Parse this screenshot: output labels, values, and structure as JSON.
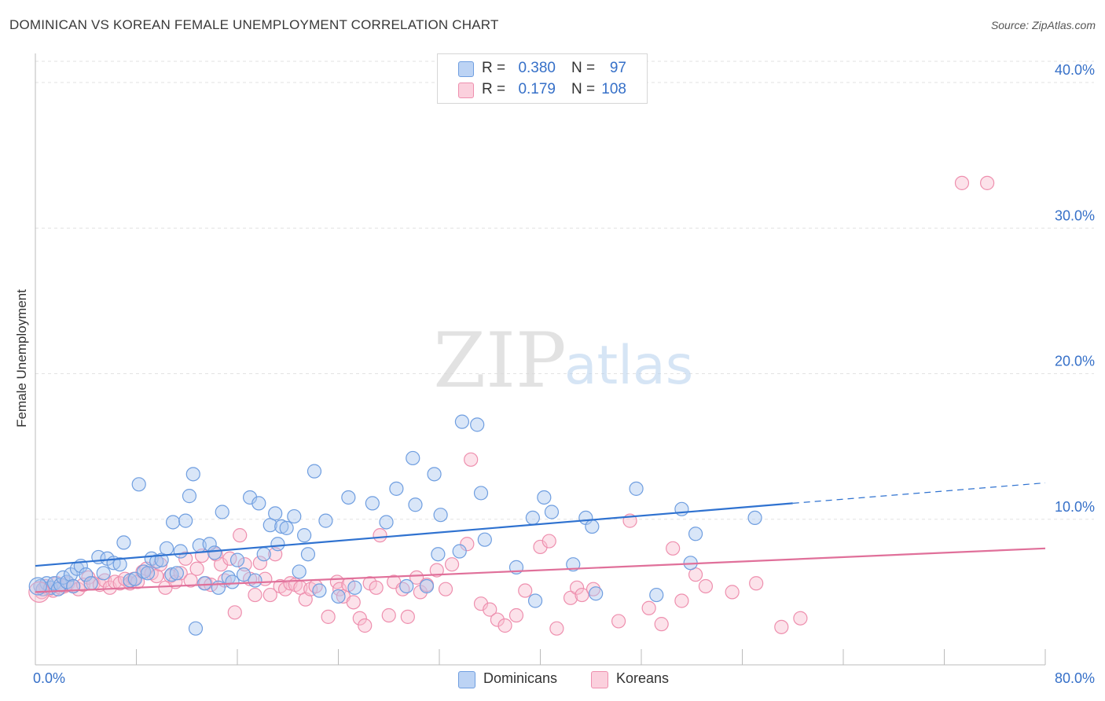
{
  "header": {
    "title": "DOMINICAN VS KOREAN FEMALE UNEMPLOYMENT CORRELATION CHART",
    "source": "Source: ZipAtlas.com"
  },
  "watermark": {
    "zip": "ZIP",
    "atlas": "atlas"
  },
  "legend_top": {
    "rows": [
      {
        "r_label": "R =",
        "r_value": "0.380",
        "n_label": "N =",
        "n_value": "97"
      },
      {
        "r_label": "R =",
        "r_value": "0.179",
        "n_label": "N =",
        "n_value": "108"
      }
    ]
  },
  "legend_bottom": {
    "items": [
      {
        "label": "Dominicans"
      },
      {
        "label": "Koreans"
      }
    ]
  },
  "colors": {
    "dominican_fill": "#aac8f0",
    "dominican_stroke": "#6f9ee0",
    "dominican_line": "#2f72d0",
    "korean_fill": "#f8bfd0",
    "korean_stroke": "#ee8fae",
    "korean_line": "#e0709a",
    "tick_label": "#3670c8",
    "grid": "#e2e2e2"
  },
  "chart_data": {
    "type": "scatter",
    "title": "DOMINICAN VS KOREAN FEMALE UNEMPLOYMENT CORRELATION CHART",
    "xlabel": "",
    "ylabel": "Female Unemployment",
    "xlim": [
      0,
      80
    ],
    "ylim": [
      0,
      42
    ],
    "x_tick_labels": [
      "0.0%",
      "80.0%"
    ],
    "y_ticks": [
      10,
      20,
      30,
      40
    ],
    "y_tick_labels": [
      "10.0%",
      "20.0%",
      "30.0%",
      "40.0%"
    ],
    "grid": true,
    "legend_position": "top-center",
    "series": [
      {
        "name": "Dominicans",
        "r": 0.38,
        "n": 97,
        "trend": {
          "x0": 0,
          "y0": 6.8,
          "x1": 60,
          "y1": 11.1,
          "dash_to_x": 80,
          "dash_to_y": 12.5
        },
        "points": [
          [
            0.4,
            5.4
          ],
          [
            0.6,
            5.2
          ],
          [
            0.9,
            5.6
          ],
          [
            1.2,
            5.3
          ],
          [
            1.5,
            5.6
          ],
          [
            1.8,
            5.2
          ],
          [
            2.0,
            5.5
          ],
          [
            2.2,
            6.0
          ],
          [
            2.5,
            5.7
          ],
          [
            2.8,
            6.2
          ],
          [
            3.0,
            5.4
          ],
          [
            3.3,
            6.6
          ],
          [
            3.6,
            6.8
          ],
          [
            4.0,
            6.2
          ],
          [
            4.4,
            5.6
          ],
          [
            5.0,
            7.4
          ],
          [
            5.4,
            6.3
          ],
          [
            5.7,
            7.3
          ],
          [
            6.2,
            7.0
          ],
          [
            6.7,
            6.9
          ],
          [
            7.0,
            8.4
          ],
          [
            7.5,
            5.8
          ],
          [
            7.9,
            5.9
          ],
          [
            8.2,
            12.4
          ],
          [
            8.6,
            6.4
          ],
          [
            8.9,
            6.3
          ],
          [
            9.2,
            7.3
          ],
          [
            9.6,
            7.1
          ],
          [
            10.0,
            7.2
          ],
          [
            10.4,
            8.0
          ],
          [
            10.8,
            6.2
          ],
          [
            10.9,
            9.8
          ],
          [
            11.2,
            6.3
          ],
          [
            11.5,
            7.8
          ],
          [
            11.9,
            9.9
          ],
          [
            12.2,
            11.6
          ],
          [
            12.5,
            13.1
          ],
          [
            12.7,
            2.5
          ],
          [
            13.0,
            8.2
          ],
          [
            13.4,
            5.6
          ],
          [
            13.8,
            8.3
          ],
          [
            14.2,
            7.7
          ],
          [
            14.5,
            5.3
          ],
          [
            14.8,
            10.5
          ],
          [
            15.3,
            6.0
          ],
          [
            15.6,
            5.7
          ],
          [
            16.0,
            7.2
          ],
          [
            16.5,
            6.2
          ],
          [
            17.0,
            11.5
          ],
          [
            17.4,
            5.8
          ],
          [
            17.7,
            11.1
          ],
          [
            18.1,
            7.6
          ],
          [
            18.6,
            9.6
          ],
          [
            19.0,
            10.4
          ],
          [
            19.2,
            8.3
          ],
          [
            19.5,
            9.5
          ],
          [
            19.9,
            9.4
          ],
          [
            20.5,
            10.2
          ],
          [
            20.9,
            6.4
          ],
          [
            21.3,
            8.9
          ],
          [
            21.6,
            7.6
          ],
          [
            22.1,
            13.3
          ],
          [
            22.5,
            5.1
          ],
          [
            23.0,
            9.9
          ],
          [
            24.0,
            4.7
          ],
          [
            24.8,
            11.5
          ],
          [
            25.3,
            5.3
          ],
          [
            26.7,
            11.1
          ],
          [
            27.8,
            9.8
          ],
          [
            28.6,
            12.1
          ],
          [
            29.4,
            5.4
          ],
          [
            29.9,
            14.2
          ],
          [
            30.1,
            11.0
          ],
          [
            31.0,
            5.4
          ],
          [
            31.6,
            13.1
          ],
          [
            31.9,
            7.6
          ],
          [
            32.1,
            10.3
          ],
          [
            33.6,
            7.8
          ],
          [
            33.8,
            16.7
          ],
          [
            35.0,
            16.5
          ],
          [
            35.3,
            11.8
          ],
          [
            35.6,
            8.6
          ],
          [
            38.1,
            6.7
          ],
          [
            39.4,
            10.1
          ],
          [
            39.6,
            4.4
          ],
          [
            40.3,
            11.5
          ],
          [
            40.9,
            10.5
          ],
          [
            42.6,
            6.9
          ],
          [
            43.6,
            10.1
          ],
          [
            44.1,
            9.5
          ],
          [
            44.4,
            4.9
          ],
          [
            47.6,
            12.1
          ],
          [
            49.2,
            4.8
          ],
          [
            51.2,
            10.7
          ],
          [
            51.9,
            7.0
          ],
          [
            52.3,
            9.0
          ],
          [
            57.0,
            10.1
          ]
        ]
      },
      {
        "name": "Koreans",
        "r": 0.179,
        "n": 108,
        "trend": {
          "x0": 0,
          "y0": 5.0,
          "x1": 80,
          "y1": 8.0
        },
        "points": [
          [
            0.5,
            5.0
          ],
          [
            0.8,
            5.4
          ],
          [
            1.1,
            5.2
          ],
          [
            1.4,
            5.1
          ],
          [
            1.7,
            5.6
          ],
          [
            2.0,
            5.3
          ],
          [
            2.3,
            5.4
          ],
          [
            2.6,
            5.6
          ],
          [
            3.0,
            5.4
          ],
          [
            3.4,
            5.2
          ],
          [
            3.8,
            5.5
          ],
          [
            4.2,
            6.0
          ],
          [
            4.6,
            5.6
          ],
          [
            5.1,
            5.5
          ],
          [
            5.5,
            5.8
          ],
          [
            5.9,
            5.3
          ],
          [
            6.3,
            5.7
          ],
          [
            6.7,
            5.6
          ],
          [
            7.1,
            5.9
          ],
          [
            7.5,
            5.6
          ],
          [
            7.8,
            5.9
          ],
          [
            8.1,
            5.7
          ],
          [
            8.5,
            6.4
          ],
          [
            8.8,
            6.6
          ],
          [
            9.2,
            6.3
          ],
          [
            9.6,
            6.1
          ],
          [
            9.9,
            6.9
          ],
          [
            10.3,
            5.3
          ],
          [
            10.7,
            6.1
          ],
          [
            11.1,
            5.7
          ],
          [
            11.5,
            6.3
          ],
          [
            11.9,
            7.3
          ],
          [
            12.3,
            5.8
          ],
          [
            12.8,
            6.6
          ],
          [
            13.2,
            7.5
          ],
          [
            13.5,
            5.6
          ],
          [
            13.9,
            5.5
          ],
          [
            14.3,
            7.6
          ],
          [
            14.7,
            6.9
          ],
          [
            15.0,
            5.8
          ],
          [
            15.4,
            7.3
          ],
          [
            15.8,
            3.6
          ],
          [
            16.2,
            8.9
          ],
          [
            16.6,
            6.9
          ],
          [
            17.0,
            5.9
          ],
          [
            17.4,
            4.8
          ],
          [
            17.8,
            7.0
          ],
          [
            18.2,
            5.9
          ],
          [
            18.6,
            4.8
          ],
          [
            19.0,
            7.6
          ],
          [
            19.4,
            5.4
          ],
          [
            19.8,
            5.2
          ],
          [
            20.2,
            5.6
          ],
          [
            20.6,
            5.5
          ],
          [
            21.0,
            5.3
          ],
          [
            21.4,
            4.5
          ],
          [
            21.8,
            5.2
          ],
          [
            22.2,
            5.4
          ],
          [
            23.2,
            3.3
          ],
          [
            23.9,
            5.7
          ],
          [
            24.1,
            5.2
          ],
          [
            24.4,
            4.7
          ],
          [
            24.8,
            5.5
          ],
          [
            25.2,
            4.3
          ],
          [
            25.7,
            3.2
          ],
          [
            26.1,
            2.7
          ],
          [
            26.5,
            5.6
          ],
          [
            27.0,
            5.3
          ],
          [
            27.3,
            8.9
          ],
          [
            28.0,
            3.4
          ],
          [
            28.4,
            5.7
          ],
          [
            29.1,
            5.2
          ],
          [
            29.5,
            3.3
          ],
          [
            30.2,
            6.0
          ],
          [
            30.5,
            5.0
          ],
          [
            31.0,
            5.5
          ],
          [
            31.8,
            6.5
          ],
          [
            32.5,
            5.2
          ],
          [
            33.0,
            6.9
          ],
          [
            34.2,
            8.3
          ],
          [
            34.5,
            14.1
          ],
          [
            35.3,
            4.2
          ],
          [
            36.0,
            3.8
          ],
          [
            36.6,
            3.1
          ],
          [
            37.2,
            2.7
          ],
          [
            38.1,
            3.4
          ],
          [
            38.8,
            5.1
          ],
          [
            40.0,
            8.1
          ],
          [
            40.7,
            8.5
          ],
          [
            41.3,
            2.5
          ],
          [
            42.4,
            4.6
          ],
          [
            42.9,
            5.3
          ],
          [
            43.3,
            4.8
          ],
          [
            44.2,
            5.2
          ],
          [
            46.2,
            3.0
          ],
          [
            47.1,
            9.9
          ],
          [
            48.6,
            3.9
          ],
          [
            49.6,
            2.8
          ],
          [
            50.5,
            8.0
          ],
          [
            51.2,
            4.4
          ],
          [
            52.3,
            6.2
          ],
          [
            53.1,
            5.4
          ],
          [
            55.2,
            5.0
          ],
          [
            57.1,
            5.6
          ],
          [
            59.1,
            2.6
          ],
          [
            60.6,
            3.2
          ],
          [
            73.4,
            33.1
          ],
          [
            75.4,
            33.1
          ]
        ]
      }
    ]
  }
}
